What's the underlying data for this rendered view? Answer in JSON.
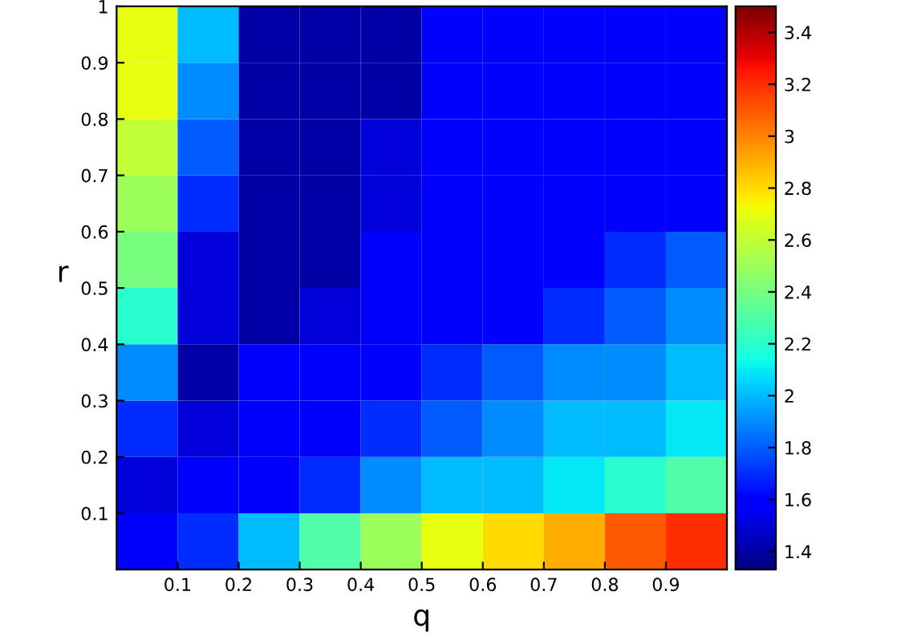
{
  "chart_data": {
    "type": "heatmap",
    "xlabel": "q",
    "ylabel": "r",
    "x": [
      0.05,
      0.15,
      0.25,
      0.35,
      0.45,
      0.55,
      0.65,
      0.75,
      0.85,
      0.95
    ],
    "y": [
      0.05,
      0.15,
      0.25,
      0.35,
      0.45,
      0.55,
      0.65,
      0.75,
      0.85,
      0.95
    ],
    "cells": [
      [
        1.6,
        1.7,
        2.0,
        2.3,
        2.5,
        2.7,
        2.8,
        2.9,
        3.1,
        3.2
      ],
      [
        1.5,
        1.6,
        1.6,
        1.7,
        1.9,
        2.0,
        2.0,
        2.1,
        2.2,
        2.3
      ],
      [
        1.7,
        1.5,
        1.6,
        1.6,
        1.7,
        1.8,
        1.9,
        2.0,
        2.0,
        2.1
      ],
      [
        1.9,
        1.4,
        1.6,
        1.6,
        1.6,
        1.7,
        1.8,
        1.9,
        1.9,
        2.0
      ],
      [
        2.2,
        1.5,
        1.4,
        1.5,
        1.6,
        1.6,
        1.6,
        1.7,
        1.8,
        1.9
      ],
      [
        2.4,
        1.5,
        1.4,
        1.4,
        1.6,
        1.6,
        1.6,
        1.6,
        1.7,
        1.8
      ],
      [
        2.5,
        1.7,
        1.4,
        1.4,
        1.5,
        1.6,
        1.6,
        1.6,
        1.6,
        1.6
      ],
      [
        2.6,
        1.8,
        1.4,
        1.4,
        1.5,
        1.6,
        1.6,
        1.6,
        1.6,
        1.6
      ],
      [
        2.7,
        1.9,
        1.4,
        1.4,
        1.4,
        1.6,
        1.6,
        1.6,
        1.6,
        1.6
      ],
      [
        2.7,
        2.0,
        1.4,
        1.4,
        1.4,
        1.6,
        1.6,
        1.6,
        1.6,
        1.6
      ]
    ],
    "xlim": [
      0,
      1
    ],
    "ylim": [
      0,
      1
    ],
    "xticks": [
      0.1,
      0.2,
      0.3,
      0.4,
      0.5,
      0.6,
      0.7,
      0.8,
      0.9
    ],
    "yticks": [
      0.1,
      0.2,
      0.3,
      0.4,
      0.5,
      0.6,
      0.7,
      0.8,
      0.9,
      1
    ],
    "clim": [
      1.33,
      3.5
    ],
    "cticks": [
      1.4,
      1.6,
      1.8,
      2,
      2.2,
      2.4,
      2.6,
      2.8,
      3,
      3.2,
      3.4
    ]
  }
}
